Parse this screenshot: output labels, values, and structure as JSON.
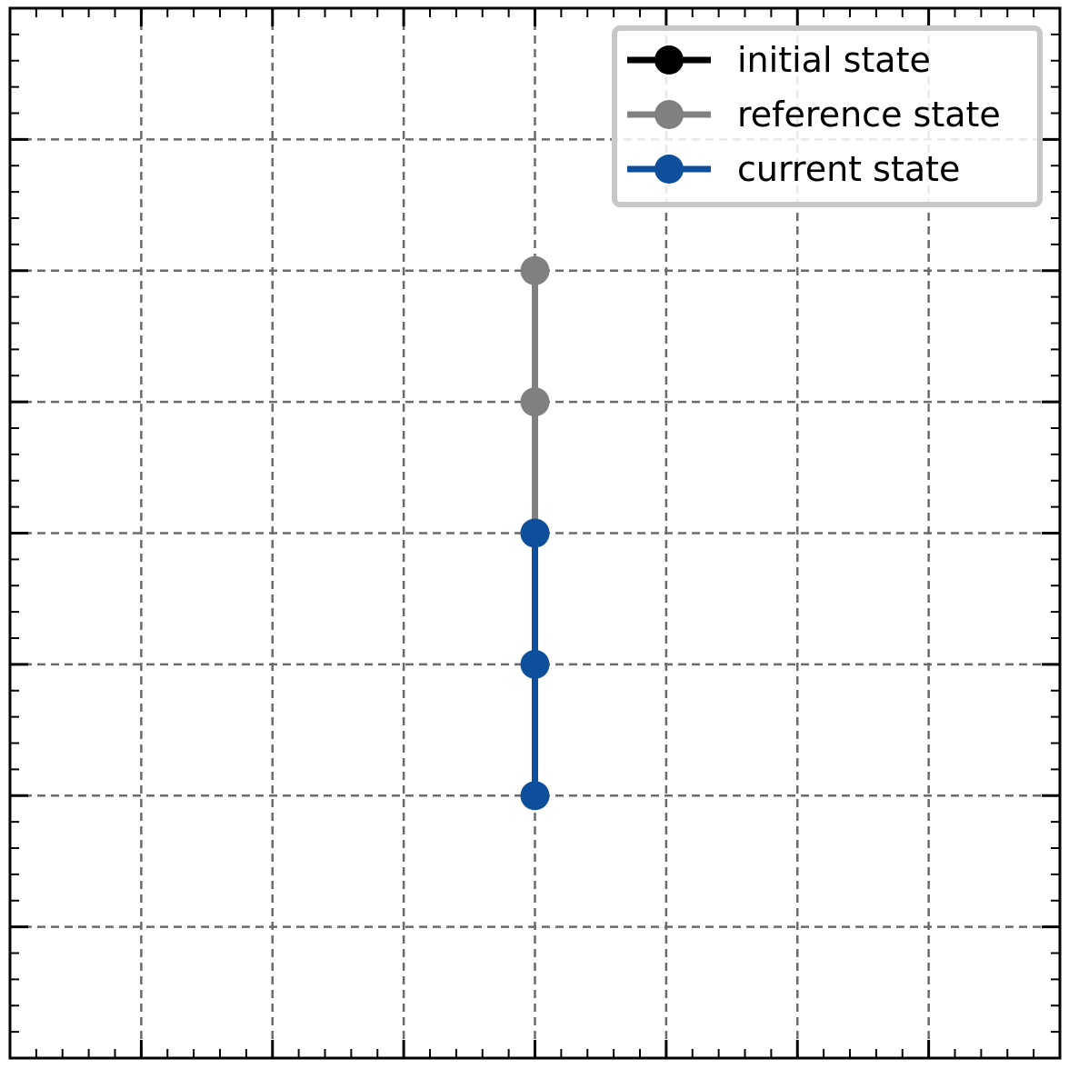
{
  "chart_data": {
    "type": "line",
    "title": "",
    "xlabel": "",
    "ylabel": "",
    "xlim": [
      -4,
      4
    ],
    "ylim": [
      -4,
      4
    ],
    "grid": true,
    "grid_style": "dashed",
    "x_major_ticks": [
      -3,
      -2,
      -1,
      0,
      1,
      2,
      3
    ],
    "y_major_ticks": [
      -3,
      -2,
      -1,
      0,
      1,
      2,
      3
    ],
    "minor_ticks_per_major": 5,
    "tick_labels_shown": false,
    "legend_placement": "top-right",
    "series": [
      {
        "name": "initial state",
        "color": "#000000",
        "points": []
      },
      {
        "name": "reference state",
        "color": "#808080",
        "points": [
          [
            0,
            2
          ],
          [
            0,
            1
          ],
          [
            0,
            0
          ]
        ]
      },
      {
        "name": "current state",
        "color": "#0e4f9b",
        "points": [
          [
            0,
            0
          ],
          [
            0,
            -1
          ],
          [
            0,
            -2
          ]
        ]
      }
    ]
  }
}
